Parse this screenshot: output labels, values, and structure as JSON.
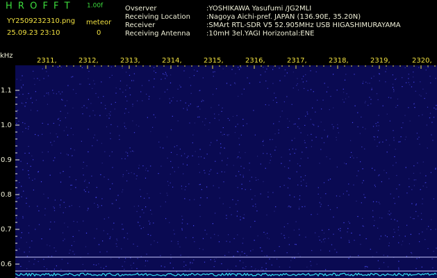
{
  "header": {
    "app": "H R O F F T",
    "version": "1.00f",
    "file": "YY2509232310.png",
    "datetime": "25.09.23 23:10",
    "count_label": "meteor",
    "count": "0"
  },
  "info": [
    {
      "label": "Ovserver",
      "value": ":YOSHIKAWA Yasufumi /JG2MLI"
    },
    {
      "label": "Receiving Location",
      "value": ":Nagoya Aichi-pref. JAPAN (136.90E, 35.20N)"
    },
    {
      "label": "Receiver",
      "value": ":SMArt RTL-SDR V5 52.905MHz USB HIGASHIMURAYAMA"
    },
    {
      "label": "Receiving Antenna",
      "value": ":10mH 3el.YAGI Horizontal:ENE"
    }
  ],
  "freq_unit": "kHz",
  "time_labels": [
    "2311,",
    "2312,",
    "2313,",
    "2314,",
    "2315,",
    "2316,",
    "2317,",
    "2318,",
    "2319,",
    "2320,"
  ],
  "freq_labels": [
    "1.1",
    "1.0",
    "0.9",
    "0.8",
    "0.7",
    "0.6"
  ]
}
